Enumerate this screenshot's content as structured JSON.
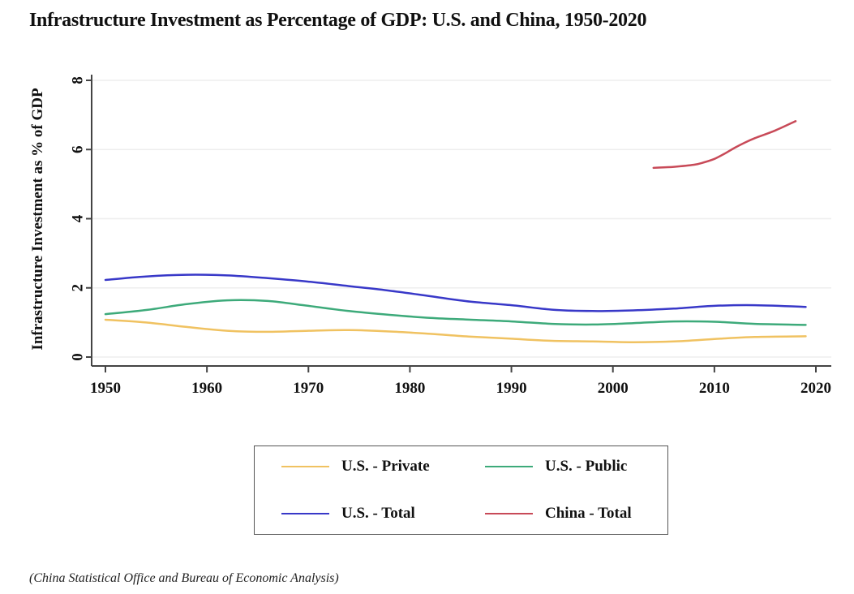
{
  "chart_data": {
    "type": "line",
    "title": "Infrastructure Investment as Percentage of GDP: U.S. and China, 1950-2020",
    "xlabel": "",
    "ylabel": "Infrastructure Investment as % of GDP",
    "xlim": [
      1949.5,
      2021.5
    ],
    "ylim": [
      0,
      8
    ],
    "x_ticks": [
      1950,
      1960,
      1970,
      1980,
      1990,
      2000,
      2010,
      2020
    ],
    "y_ticks": [
      0,
      2,
      4,
      6,
      8
    ],
    "grid": true,
    "legend_position": "bottom",
    "series": [
      {
        "name": "U.S. - Private",
        "color": "#F0C261",
        "x": [
          1950,
          1954,
          1958,
          1962,
          1966,
          1970,
          1974,
          1978,
          1982,
          1986,
          1990,
          1994,
          1998,
          2002,
          2006,
          2010,
          2014,
          2019
        ],
        "values": [
          1.08,
          1.0,
          0.87,
          0.76,
          0.73,
          0.76,
          0.78,
          0.74,
          0.67,
          0.59,
          0.53,
          0.47,
          0.45,
          0.43,
          0.45,
          0.52,
          0.58,
          0.6
        ]
      },
      {
        "name": "U.S. - Public",
        "color": "#3DAA7A",
        "x": [
          1950,
          1954,
          1958,
          1962,
          1966,
          1970,
          1974,
          1978,
          1982,
          1986,
          1990,
          1994,
          1998,
          2002,
          2006,
          2010,
          2014,
          2019
        ],
        "values": [
          1.24,
          1.36,
          1.53,
          1.64,
          1.62,
          1.48,
          1.33,
          1.22,
          1.13,
          1.08,
          1.03,
          0.96,
          0.94,
          0.98,
          1.03,
          1.02,
          0.96,
          0.93
        ]
      },
      {
        "name": "U.S. - Total",
        "color": "#3838C8",
        "x": [
          1950,
          1954,
          1958,
          1962,
          1966,
          1970,
          1974,
          1978,
          1982,
          1986,
          1990,
          1994,
          1998,
          2002,
          2006,
          2010,
          2014,
          2019
        ],
        "values": [
          2.23,
          2.33,
          2.38,
          2.36,
          2.28,
          2.18,
          2.05,
          1.92,
          1.76,
          1.6,
          1.5,
          1.37,
          1.33,
          1.35,
          1.4,
          1.48,
          1.5,
          1.45
        ]
      },
      {
        "name": "China - Total",
        "color": "#C84A58",
        "x": [
          2004,
          2006,
          2008,
          2009,
          2010,
          2011,
          2012,
          2013,
          2014,
          2016,
          2018
        ],
        "values": [
          5.47,
          5.5,
          5.56,
          5.63,
          5.73,
          5.88,
          6.05,
          6.2,
          6.33,
          6.55,
          6.82
        ]
      }
    ]
  },
  "legend": {
    "items": [
      {
        "label": "U.S. - Private",
        "color": "#F0C261"
      },
      {
        "label": "U.S. - Public",
        "color": "#3DAA7A"
      },
      {
        "label": "U.S. - Total",
        "color": "#3838C8"
      },
      {
        "label": "China - Total",
        "color": "#C84A58"
      }
    ]
  },
  "source_note": "(China Statistical Office and Bureau of  Economic Analysis)"
}
